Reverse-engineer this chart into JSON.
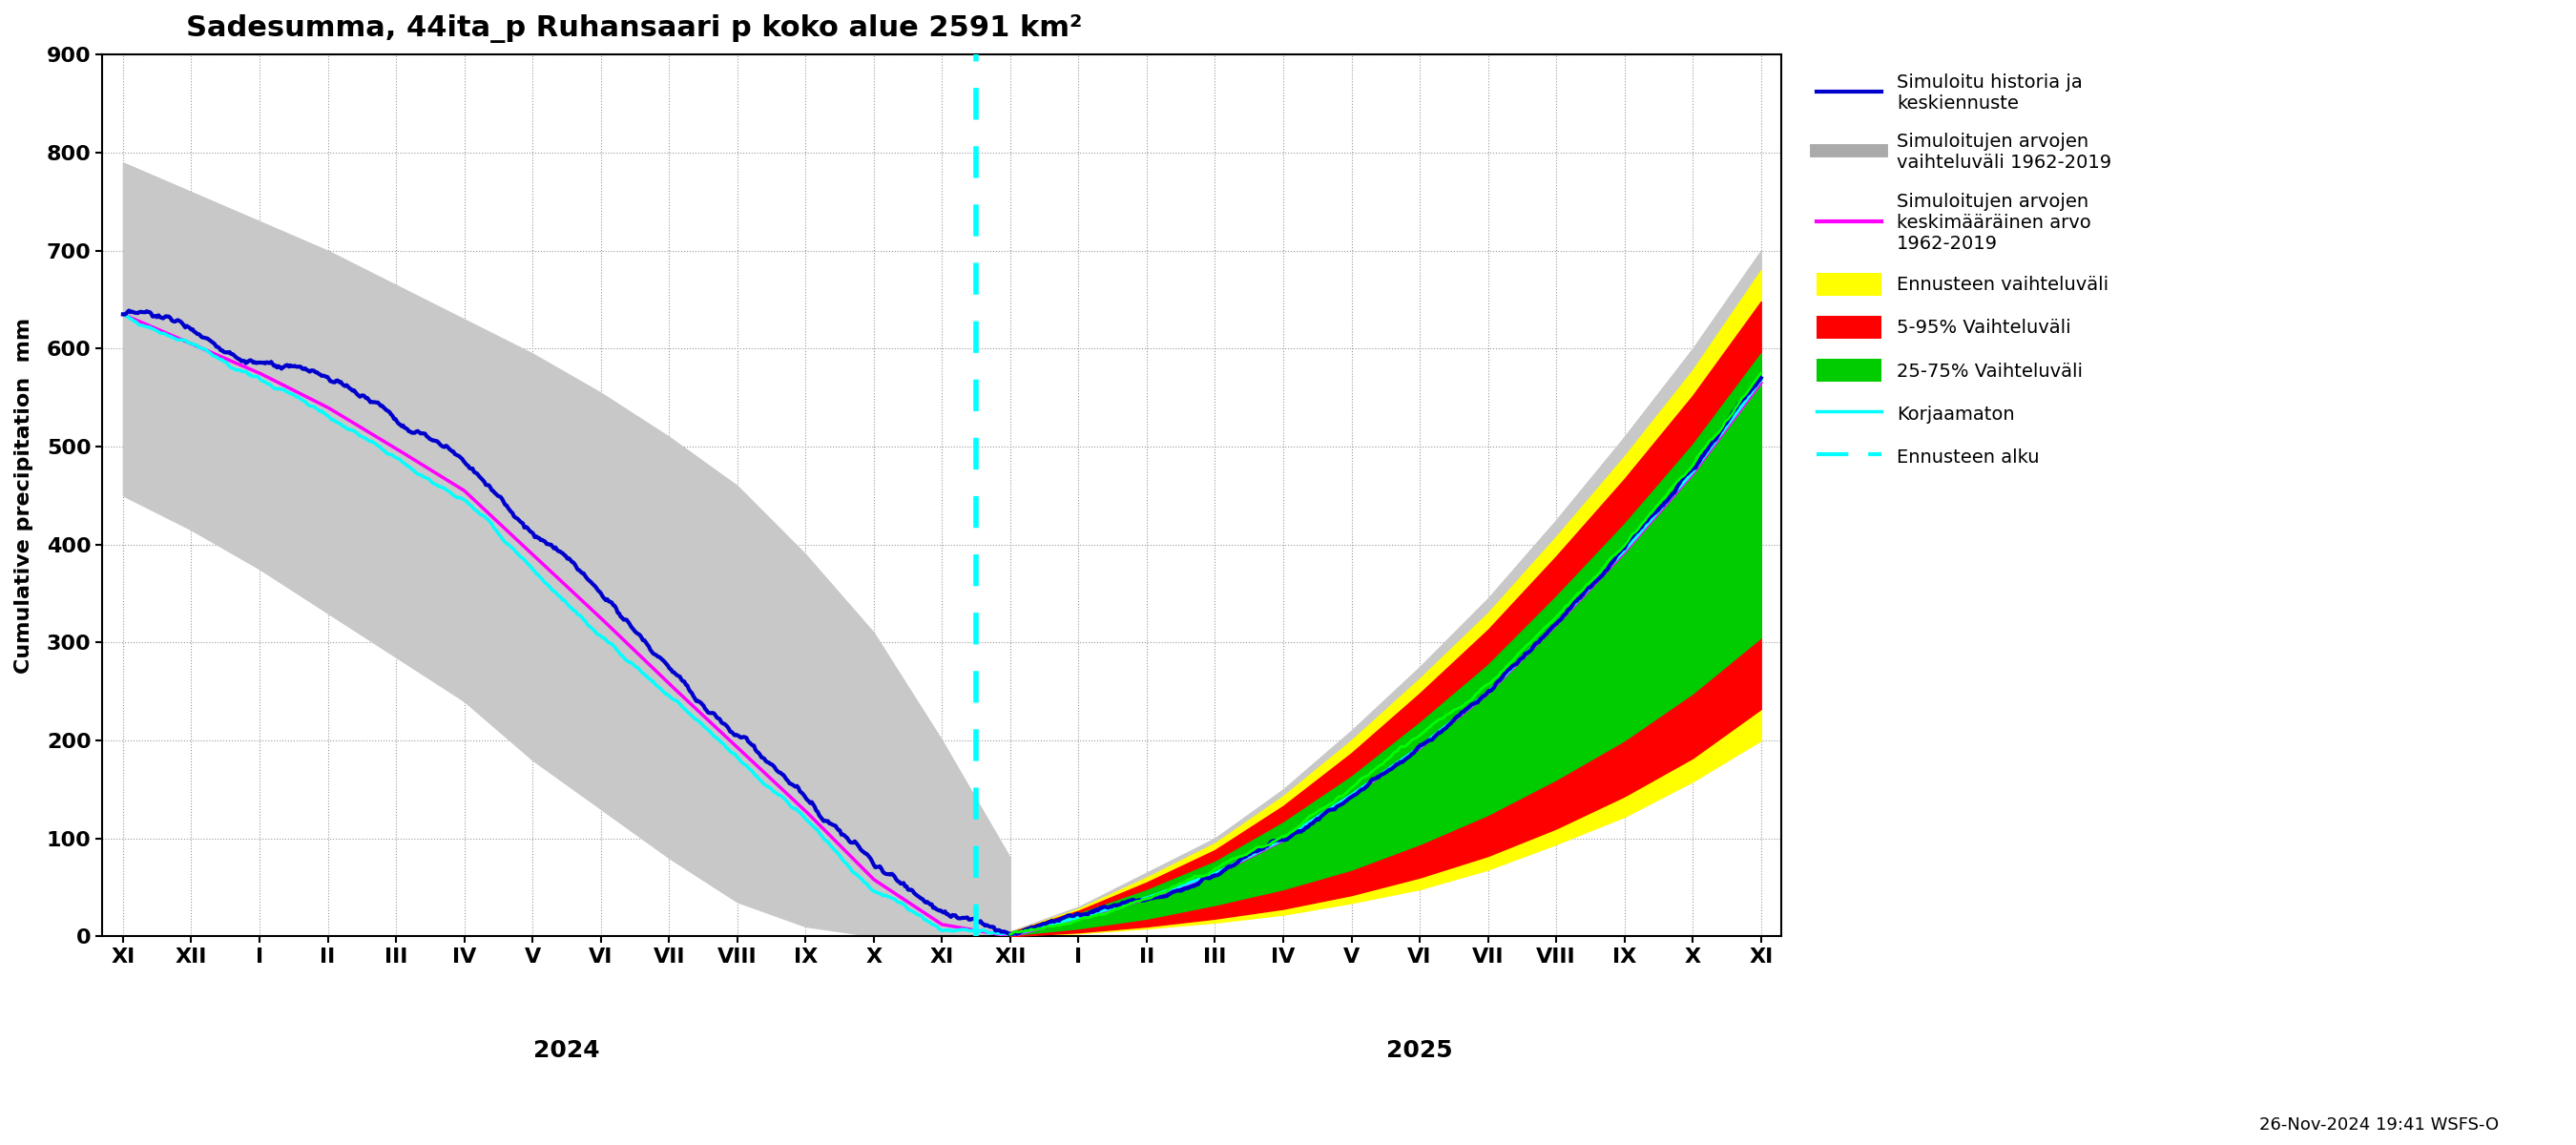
{
  "title": "Sadesumma, 44ita_p Ruhansaari p koko alue 2591 km²",
  "ylabel": "Cumulative precipitation  mm",
  "ylim": [
    0,
    900
  ],
  "yticks": [
    0,
    100,
    200,
    300,
    400,
    500,
    600,
    700,
    800,
    900
  ],
  "xlabel_2024": "2024",
  "xlabel_2025": "2025",
  "footer_text": "26-Nov-2024 19:41 WSFS-O",
  "month_labels": [
    "XI",
    "XII",
    "I",
    "II",
    "III",
    "IV",
    "V",
    "VI",
    "VII",
    "VIII",
    "IX",
    "X",
    "XI",
    "XII",
    "I",
    "II",
    "III",
    "IV",
    "V",
    "VI",
    "VII",
    "VIII",
    "IX",
    "X",
    "XI"
  ],
  "colors": {
    "gray_band": "#c8c8c8",
    "yellow_band": "#ffff00",
    "red_band": "#ff0000",
    "green_band": "#00cc00",
    "blue_line": "#0000cc",
    "magenta_line": "#ff00ff",
    "cyan_line": "#00ffff",
    "green_line": "#00ff00",
    "vert_line": "#00ffff",
    "background": "#ffffff"
  }
}
